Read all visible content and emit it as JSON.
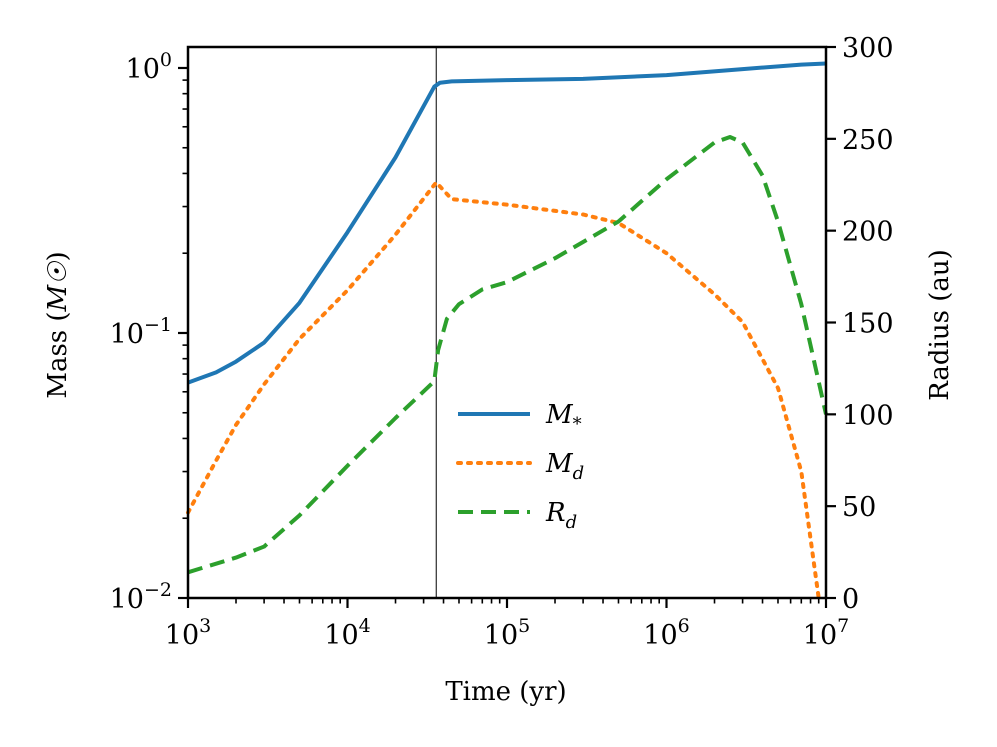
{
  "chart_data": {
    "type": "line",
    "xscale": "log",
    "xlim": [
      1000,
      10000000
    ],
    "xlabel": "Time (yr)",
    "ylabel_left": "Mass",
    "ylabel_left_unit": "M☉",
    "ylabel_right": "Radius (au)",
    "ylim_left": [
      0.01,
      1.2
    ],
    "yscale_left": "log",
    "ylim_right": [
      0,
      300
    ],
    "x_ticks": [
      {
        "value": 1000,
        "base": "10",
        "exp": "3"
      },
      {
        "value": 10000,
        "base": "10",
        "exp": "4"
      },
      {
        "value": 100000,
        "base": "10",
        "exp": "5"
      },
      {
        "value": 1000000,
        "base": "10",
        "exp": "6"
      },
      {
        "value": 10000000,
        "base": "10",
        "exp": "7"
      }
    ],
    "y_left_ticks": [
      {
        "value": 0.01,
        "base": "10",
        "exp": "−2"
      },
      {
        "value": 0.1,
        "base": "10",
        "exp": "−1"
      },
      {
        "value": 1,
        "base": "10",
        "exp": "0"
      }
    ],
    "y_right_ticks": [
      {
        "value": 0,
        "label": "0"
      },
      {
        "value": 50,
        "label": "50"
      },
      {
        "value": 100,
        "label": "100"
      },
      {
        "value": 150,
        "label": "150"
      },
      {
        "value": 200,
        "label": "200"
      },
      {
        "value": 250,
        "label": "250"
      },
      {
        "value": 300,
        "label": "300"
      }
    ],
    "vline_x": 36000,
    "series": [
      {
        "name": "M*",
        "symbol": "M",
        "subscript": "*",
        "axis": "left",
        "color": "#1f77b4",
        "dash": "solid",
        "x": [
          1000,
          1500,
          2000,
          3000,
          5000,
          10000,
          20000,
          35000,
          38000,
          45000,
          100000,
          300000,
          1000000,
          3000000,
          7000000,
          10000000
        ],
        "y": [
          0.065,
          0.071,
          0.078,
          0.092,
          0.13,
          0.24,
          0.46,
          0.85,
          0.88,
          0.89,
          0.9,
          0.91,
          0.94,
          0.99,
          1.03,
          1.04
        ]
      },
      {
        "name": "Md",
        "symbol": "M",
        "subscript": "d",
        "axis": "left",
        "color": "#ff7f0e",
        "dash": "dotted",
        "x": [
          1000,
          1500,
          2000,
          3000,
          5000,
          10000,
          20000,
          36000,
          45000,
          100000,
          300000,
          500000,
          1000000,
          2000000,
          3000000,
          5000000,
          7000000,
          9000000
        ],
        "y": [
          0.021,
          0.033,
          0.045,
          0.064,
          0.095,
          0.145,
          0.235,
          0.37,
          0.32,
          0.305,
          0.28,
          0.26,
          0.2,
          0.14,
          0.11,
          0.062,
          0.03,
          0.01
        ]
      },
      {
        "name": "Rd",
        "symbol": "R",
        "subscript": "d",
        "axis": "right",
        "color": "#2ca02c",
        "dash": "dashed",
        "x": [
          1000,
          2000,
          3000,
          5000,
          10000,
          20000,
          35000,
          37000,
          42000,
          50000,
          70000,
          100000,
          200000,
          500000,
          1000000,
          2000000,
          2500000,
          3000000,
          4000000,
          5000000,
          7000000,
          10000000
        ],
        "y": [
          14,
          22,
          28,
          45,
          72,
          98,
          118,
          135,
          152,
          160,
          168,
          172,
          185,
          205,
          228,
          248,
          251,
          248,
          230,
          205,
          160,
          100
        ]
      }
    ],
    "legend": {
      "placement": "center"
    }
  }
}
